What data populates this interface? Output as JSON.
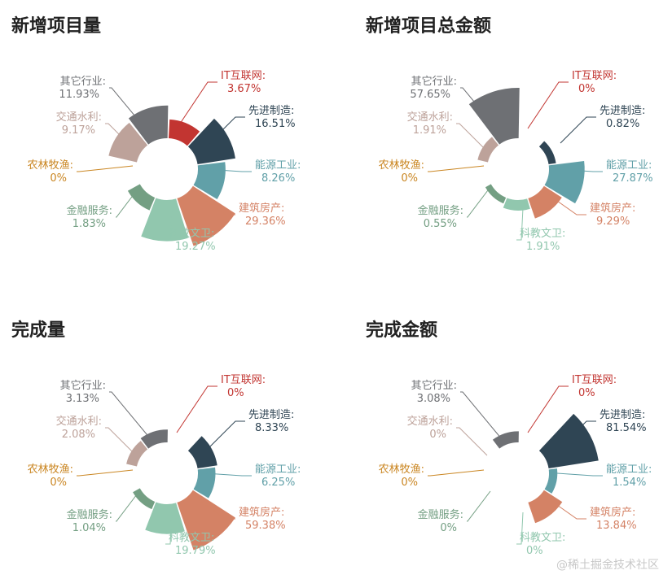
{
  "page": {
    "watermark": "@稀土掘金技术社区"
  },
  "categories": [
    "IT互联网",
    "先进制造",
    "能源工业",
    "建筑房产",
    "科教文卫",
    "金融服务",
    "农林牧渔",
    "交通水利",
    "其它行业"
  ],
  "colors": {
    "IT互联网": "#c23531",
    "先进制造": "#2f4554",
    "能源工业": "#61a0a8",
    "建筑房产": "#d48265",
    "科教文卫": "#91c7ae",
    "金融服务": "#749f83",
    "农林牧渔": "#ca8622",
    "交通水利": "#bda29a",
    "其它行业": "#6e7074"
  },
  "chart_data": [
    {
      "type": "pie",
      "variant": "rose",
      "title": "新增项目量",
      "categories": [
        "IT互联网",
        "先进制造",
        "能源工业",
        "建筑房产",
        "科教文卫",
        "金融服务",
        "农林牧渔",
        "交通水利",
        "其它行业"
      ],
      "values": [
        3.67,
        16.51,
        8.26,
        29.36,
        19.27,
        1.83,
        0,
        9.17,
        11.93
      ],
      "labels": [
        "3.67%",
        "16.51%",
        "8.26%",
        "29.36%",
        "19.27%",
        "1.83%",
        "0%",
        "9.17%",
        "11.93%"
      ]
    },
    {
      "type": "pie",
      "variant": "rose",
      "title": "新增项目总金额",
      "categories": [
        "IT互联网",
        "先进制造",
        "能源工业",
        "建筑房产",
        "科教文卫",
        "金融服务",
        "农林牧渔",
        "交通水利",
        "其它行业"
      ],
      "values": [
        0,
        0.82,
        27.87,
        9.29,
        1.91,
        0.55,
        0,
        1.91,
        57.65
      ],
      "labels": [
        "0%",
        "0.82%",
        "27.87%",
        "9.29%",
        "1.91%",
        "0.55%",
        "0%",
        "1.91%",
        "57.65%"
      ]
    },
    {
      "type": "pie",
      "variant": "rose",
      "title": "完成量",
      "categories": [
        "IT互联网",
        "先进制造",
        "能源工业",
        "建筑房产",
        "科教文卫",
        "金融服务",
        "农林牧渔",
        "交通水利",
        "其它行业"
      ],
      "values": [
        0,
        8.33,
        6.25,
        59.38,
        19.79,
        1.04,
        0,
        2.08,
        3.13
      ],
      "labels": [
        "0%",
        "8.33%",
        "6.25%",
        "59.38%",
        "19.79%",
        "1.04%",
        "0%",
        "2.08%",
        "3.13%"
      ]
    },
    {
      "type": "pie",
      "variant": "rose",
      "title": "完成金额",
      "categories": [
        "IT互联网",
        "先进制造",
        "能源工业",
        "建筑房产",
        "科教文卫",
        "金融服务",
        "农林牧渔",
        "交通水利",
        "其它行业"
      ],
      "values": [
        0,
        81.54,
        1.54,
        13.84,
        0,
        0,
        0,
        0,
        3.08
      ],
      "labels": [
        "0%",
        "81.54%",
        "1.54%",
        "13.84%",
        "0%",
        "0%",
        "0%",
        "0%",
        "3.08%"
      ]
    }
  ]
}
